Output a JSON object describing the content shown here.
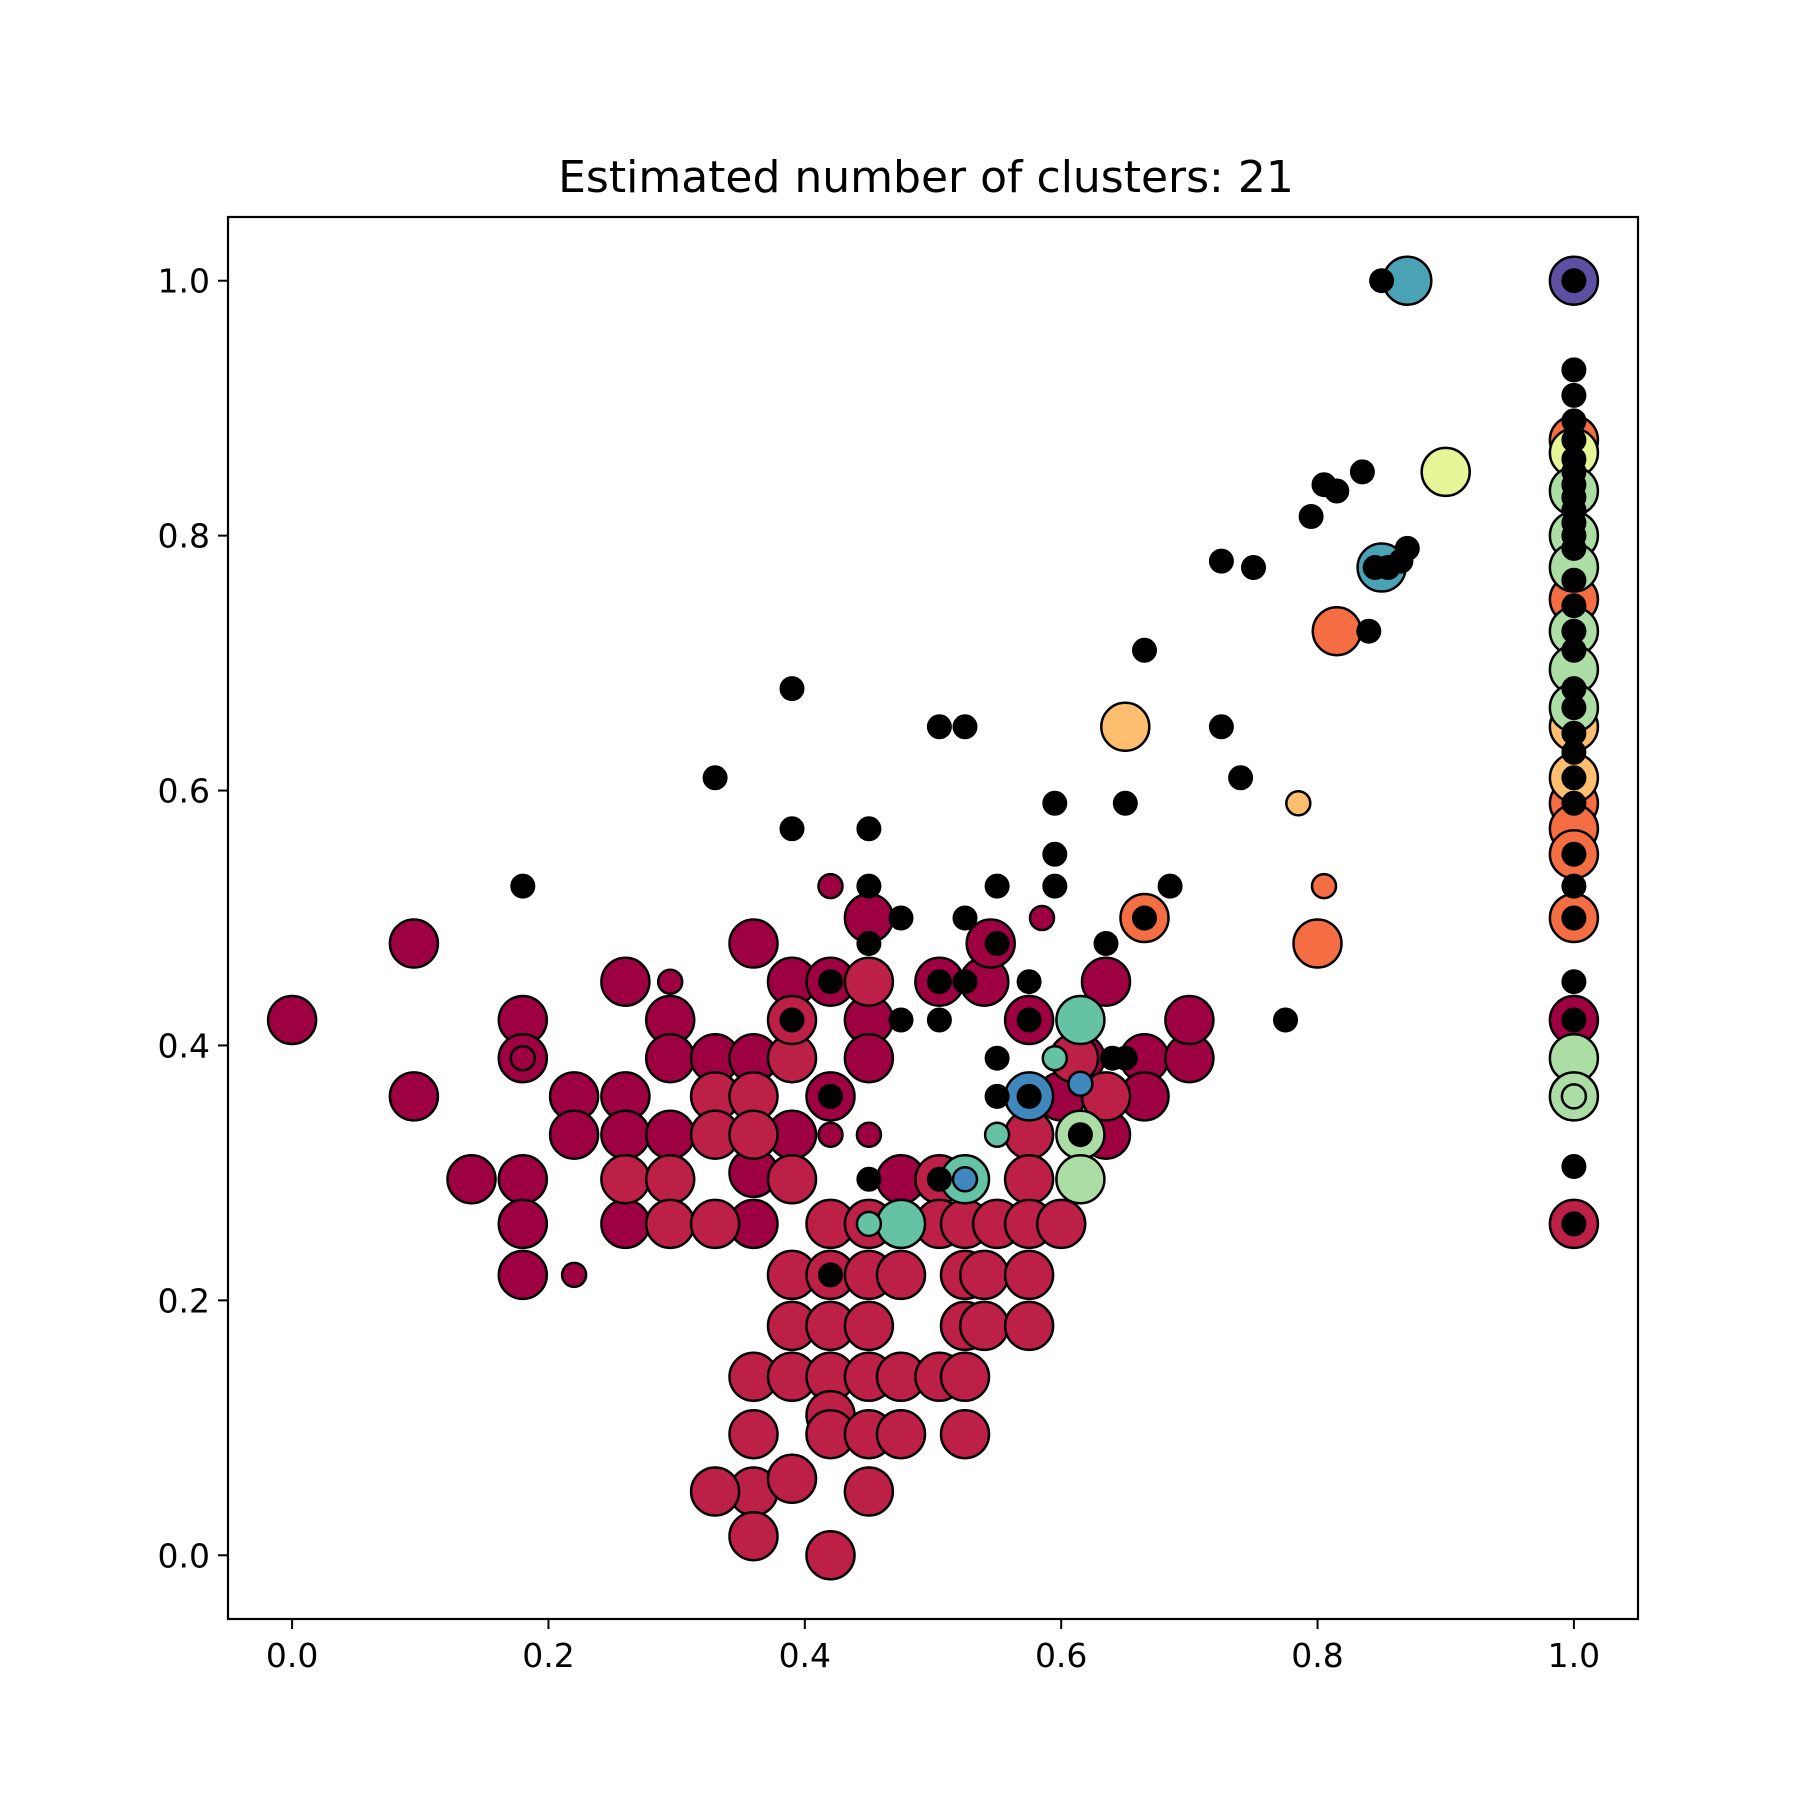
{
  "chart_data": {
    "type": "scatter",
    "title": "Estimated number of clusters: 21",
    "xlabel": "",
    "ylabel": "",
    "xlim": [
      -0.05,
      1.05
    ],
    "ylim": [
      -0.05,
      1.05
    ],
    "xticks": [
      "0.0",
      "0.2",
      "0.4",
      "0.6",
      "0.8",
      "1.0"
    ],
    "yticks": [
      "0.0",
      "0.2",
      "0.4",
      "0.6",
      "0.8",
      "1.0"
    ],
    "grid": false,
    "legend": "none",
    "series": [
      {
        "color": "#9e0142",
        "size": "large",
        "points": [
          [
            0.0,
            0.42
          ],
          [
            0.095,
            0.48
          ],
          [
            0.095,
            0.36
          ],
          [
            0.14,
            0.295
          ],
          [
            0.18,
            0.42
          ],
          [
            0.18,
            0.39
          ],
          [
            0.18,
            0.295
          ],
          [
            0.18,
            0.26
          ],
          [
            0.18,
            0.22
          ],
          [
            0.22,
            0.36
          ],
          [
            0.22,
            0.33
          ],
          [
            0.26,
            0.45
          ],
          [
            0.26,
            0.36
          ],
          [
            0.26,
            0.33
          ],
          [
            0.26,
            0.26
          ],
          [
            0.295,
            0.42
          ],
          [
            0.295,
            0.39
          ],
          [
            0.295,
            0.33
          ],
          [
            0.33,
            0.39
          ],
          [
            0.36,
            0.48
          ],
          [
            0.36,
            0.39
          ],
          [
            0.36,
            0.3
          ],
          [
            0.36,
            0.26
          ],
          [
            0.39,
            0.45
          ],
          [
            0.39,
            0.33
          ],
          [
            0.42,
            0.45
          ],
          [
            0.42,
            0.36
          ],
          [
            0.45,
            0.5
          ],
          [
            0.45,
            0.42
          ],
          [
            0.45,
            0.39
          ],
          [
            0.475,
            0.295
          ],
          [
            0.505,
            0.45
          ],
          [
            0.54,
            0.45
          ],
          [
            0.545,
            0.48
          ],
          [
            0.575,
            0.42
          ],
          [
            0.6,
            0.36
          ],
          [
            0.615,
            0.39
          ],
          [
            0.635,
            0.33
          ],
          [
            0.635,
            0.45
          ],
          [
            0.665,
            0.39
          ],
          [
            0.665,
            0.36
          ],
          [
            0.7,
            0.39
          ],
          [
            0.7,
            0.42
          ],
          [
            1.0,
            0.42
          ]
        ]
      },
      {
        "color": "#9e0142",
        "size": "small",
        "points": [
          [
            0.18,
            0.39
          ],
          [
            0.22,
            0.22
          ],
          [
            0.295,
            0.45
          ],
          [
            0.33,
            0.33
          ],
          [
            0.42,
            0.33
          ],
          [
            0.42,
            0.525
          ],
          [
            0.45,
            0.33
          ],
          [
            0.585,
            0.5
          ]
        ]
      },
      {
        "color": "#bc2046",
        "size": "large",
        "points": [
          [
            0.26,
            0.295
          ],
          [
            0.295,
            0.295
          ],
          [
            0.295,
            0.26
          ],
          [
            0.33,
            0.36
          ],
          [
            0.33,
            0.33
          ],
          [
            0.33,
            0.26
          ],
          [
            0.36,
            0.36
          ],
          [
            0.36,
            0.33
          ],
          [
            0.36,
            0.14
          ],
          [
            0.36,
            0.095
          ],
          [
            0.36,
            0.05
          ],
          [
            0.36,
            0.015
          ],
          [
            0.33,
            0.05
          ],
          [
            0.39,
            0.39
          ],
          [
            0.39,
            0.295
          ],
          [
            0.39,
            0.42
          ],
          [
            0.39,
            0.22
          ],
          [
            0.39,
            0.18
          ],
          [
            0.39,
            0.14
          ],
          [
            0.39,
            0.06
          ],
          [
            0.42,
            0.26
          ],
          [
            0.42,
            0.22
          ],
          [
            0.42,
            0.18
          ],
          [
            0.42,
            0.14
          ],
          [
            0.42,
            0.11
          ],
          [
            0.42,
            0.095
          ],
          [
            0.42,
            0.0
          ],
          [
            0.45,
            0.45
          ],
          [
            0.45,
            0.26
          ],
          [
            0.45,
            0.22
          ],
          [
            0.45,
            0.18
          ],
          [
            0.45,
            0.14
          ],
          [
            0.45,
            0.095
          ],
          [
            0.45,
            0.05
          ],
          [
            0.475,
            0.26
          ],
          [
            0.475,
            0.22
          ],
          [
            0.475,
            0.14
          ],
          [
            0.475,
            0.095
          ],
          [
            0.505,
            0.295
          ],
          [
            0.505,
            0.26
          ],
          [
            0.505,
            0.14
          ],
          [
            0.525,
            0.26
          ],
          [
            0.525,
            0.22
          ],
          [
            0.525,
            0.18
          ],
          [
            0.525,
            0.14
          ],
          [
            0.525,
            0.095
          ],
          [
            0.54,
            0.22
          ],
          [
            0.54,
            0.18
          ],
          [
            0.55,
            0.26
          ],
          [
            0.575,
            0.33
          ],
          [
            0.575,
            0.295
          ],
          [
            0.575,
            0.26
          ],
          [
            0.575,
            0.22
          ],
          [
            0.575,
            0.18
          ],
          [
            0.6,
            0.26
          ],
          [
            0.61,
            0.39
          ],
          [
            0.635,
            0.36
          ],
          [
            1.0,
            0.26
          ]
        ]
      },
      {
        "color": "#f46d43",
        "size": "large",
        "points": [
          [
            0.665,
            0.5
          ],
          [
            0.8,
            0.48
          ],
          [
            0.815,
            0.725
          ],
          [
            1.0,
            0.875
          ],
          [
            1.0,
            0.75
          ],
          [
            1.0,
            0.59
          ],
          [
            1.0,
            0.57
          ],
          [
            1.0,
            0.55
          ],
          [
            1.0,
            0.5
          ]
        ]
      },
      {
        "color": "#f46d43",
        "size": "small",
        "points": [
          [
            0.805,
            0.525
          ]
        ]
      },
      {
        "color": "#fdbf6f",
        "size": "large",
        "points": [
          [
            0.65,
            0.65
          ],
          [
            1.0,
            0.65
          ],
          [
            1.0,
            0.61
          ]
        ]
      },
      {
        "color": "#fdbf6f",
        "size": "small",
        "points": [
          [
            0.785,
            0.59
          ]
        ]
      },
      {
        "color": "#e6f598",
        "size": "large",
        "points": [
          [
            0.9,
            0.85
          ],
          [
            1.0,
            0.865
          ]
        ]
      },
      {
        "color": "#abdda4",
        "size": "large",
        "points": [
          [
            0.615,
            0.33
          ],
          [
            0.615,
            0.295
          ],
          [
            1.0,
            0.835
          ],
          [
            1.0,
            0.8
          ],
          [
            1.0,
            0.775
          ],
          [
            1.0,
            0.725
          ],
          [
            1.0,
            0.695
          ],
          [
            1.0,
            0.665
          ],
          [
            1.0,
            0.39
          ],
          [
            1.0,
            0.36
          ]
        ]
      },
      {
        "color": "#abdda4",
        "size": "small",
        "points": [
          [
            1.0,
            0.36
          ]
        ]
      },
      {
        "color": "#66c2a5",
        "size": "large",
        "points": [
          [
            0.475,
            0.26
          ],
          [
            0.525,
            0.295
          ],
          [
            0.615,
            0.42
          ]
        ]
      },
      {
        "color": "#66c2a5",
        "size": "small",
        "points": [
          [
            0.45,
            0.26
          ],
          [
            0.55,
            0.33
          ],
          [
            0.595,
            0.39
          ]
        ]
      },
      {
        "color": "#4aa3b5",
        "size": "large",
        "points": [
          [
            0.87,
            1.0
          ],
          [
            0.85,
            0.775
          ]
        ]
      },
      {
        "color": "#3f87bc",
        "size": "large",
        "points": [
          [
            0.575,
            0.36
          ]
        ]
      },
      {
        "color": "#3f87bc",
        "size": "small",
        "points": [
          [
            0.525,
            0.295
          ],
          [
            0.615,
            0.37
          ]
        ]
      },
      {
        "color": "#5e4fa2",
        "size": "large",
        "points": [
          [
            1.0,
            1.0
          ]
        ]
      },
      {
        "color": "#000000",
        "size": "noise",
        "points": [
          [
            0.18,
            0.525
          ],
          [
            0.33,
            0.61
          ],
          [
            0.39,
            0.68
          ],
          [
            0.39,
            0.57
          ],
          [
            0.39,
            0.42
          ],
          [
            0.42,
            0.45
          ],
          [
            0.42,
            0.36
          ],
          [
            0.42,
            0.22
          ],
          [
            0.45,
            0.57
          ],
          [
            0.45,
            0.525
          ],
          [
            0.45,
            0.48
          ],
          [
            0.45,
            0.295
          ],
          [
            0.475,
            0.42
          ],
          [
            0.475,
            0.5
          ],
          [
            0.505,
            0.65
          ],
          [
            0.525,
            0.65
          ],
          [
            0.505,
            0.45
          ],
          [
            0.505,
            0.42
          ],
          [
            0.505,
            0.295
          ],
          [
            0.525,
            0.5
          ],
          [
            0.525,
            0.45
          ],
          [
            0.55,
            0.525
          ],
          [
            0.55,
            0.48
          ],
          [
            0.55,
            0.39
          ],
          [
            0.55,
            0.36
          ],
          [
            0.575,
            0.45
          ],
          [
            0.575,
            0.42
          ],
          [
            0.575,
            0.36
          ],
          [
            0.595,
            0.59
          ],
          [
            0.595,
            0.55
          ],
          [
            0.595,
            0.525
          ],
          [
            0.615,
            0.33
          ],
          [
            0.635,
            0.48
          ],
          [
            0.64,
            0.39
          ],
          [
            0.65,
            0.39
          ],
          [
            0.65,
            0.59
          ],
          [
            0.665,
            0.71
          ],
          [
            0.665,
            0.5
          ],
          [
            0.685,
            0.525
          ],
          [
            0.725,
            0.78
          ],
          [
            0.725,
            0.65
          ],
          [
            0.74,
            0.61
          ],
          [
            0.75,
            0.775
          ],
          [
            0.775,
            0.42
          ],
          [
            0.795,
            0.815
          ],
          [
            0.805,
            0.84
          ],
          [
            0.815,
            0.835
          ],
          [
            0.835,
            0.85
          ],
          [
            0.84,
            0.725
          ],
          [
            0.85,
            1.0
          ],
          [
            0.845,
            0.775
          ],
          [
            0.855,
            0.775
          ],
          [
            0.865,
            0.78
          ],
          [
            0.87,
            0.79
          ],
          [
            1.0,
            1.0
          ],
          [
            1.0,
            0.93
          ],
          [
            1.0,
            0.91
          ],
          [
            1.0,
            0.89
          ],
          [
            1.0,
            0.875
          ],
          [
            1.0,
            0.86
          ],
          [
            1.0,
            0.85
          ],
          [
            1.0,
            0.84
          ],
          [
            1.0,
            0.83
          ],
          [
            1.0,
            0.82
          ],
          [
            1.0,
            0.81
          ],
          [
            1.0,
            0.8
          ],
          [
            1.0,
            0.79
          ],
          [
            1.0,
            0.765
          ],
          [
            1.0,
            0.745
          ],
          [
            1.0,
            0.725
          ],
          [
            1.0,
            0.71
          ],
          [
            1.0,
            0.68
          ],
          [
            1.0,
            0.665
          ],
          [
            1.0,
            0.645
          ],
          [
            1.0,
            0.63
          ],
          [
            1.0,
            0.61
          ],
          [
            1.0,
            0.59
          ],
          [
            1.0,
            0.55
          ],
          [
            1.0,
            0.525
          ],
          [
            1.0,
            0.5
          ],
          [
            1.0,
            0.45
          ],
          [
            1.0,
            0.42
          ],
          [
            1.0,
            0.305
          ],
          [
            1.0,
            0.26
          ]
        ]
      }
    ]
  }
}
